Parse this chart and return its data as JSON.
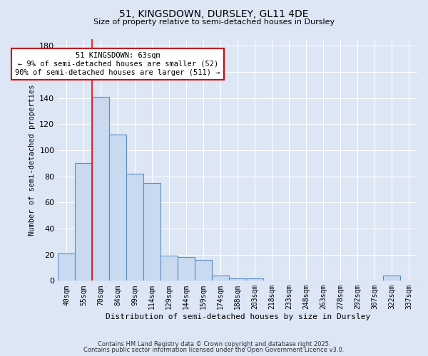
{
  "title1": "51, KINGSDOWN, DURSLEY, GL11 4DE",
  "title2": "Size of property relative to semi-detached houses in Dursley",
  "xlabel": "Distribution of semi-detached houses by size in Dursley",
  "ylabel": "Number of semi-detached properties",
  "categories": [
    "40sqm",
    "55sqm",
    "70sqm",
    "84sqm",
    "99sqm",
    "114sqm",
    "129sqm",
    "144sqm",
    "159sqm",
    "174sqm",
    "188sqm",
    "203sqm",
    "218sqm",
    "233sqm",
    "248sqm",
    "263sqm",
    "278sqm",
    "292sqm",
    "307sqm",
    "322sqm",
    "337sqm"
  ],
  "values": [
    21,
    90,
    141,
    112,
    82,
    75,
    19,
    18,
    16,
    4,
    2,
    2,
    0,
    0,
    0,
    0,
    0,
    0,
    0,
    4,
    0
  ],
  "bar_color": "#c9d9f0",
  "bar_edge_color": "#5b8cc8",
  "bar_edge_width": 0.8,
  "red_line_x": 1.5,
  "annotation_text": "51 KINGSDOWN: 63sqm\n← 9% of semi-detached houses are smaller (52)\n90% of semi-detached houses are larger (511) →",
  "annotation_box_color": "#ffffff",
  "annotation_border_color": "#cc0000",
  "ylim": [
    0,
    185
  ],
  "background_color": "#dce6f5",
  "grid_color": "#ffffff",
  "footer1": "Contains HM Land Registry data © Crown copyright and database right 2025.",
  "footer2": "Contains public sector information licensed under the Open Government Licence v3.0."
}
